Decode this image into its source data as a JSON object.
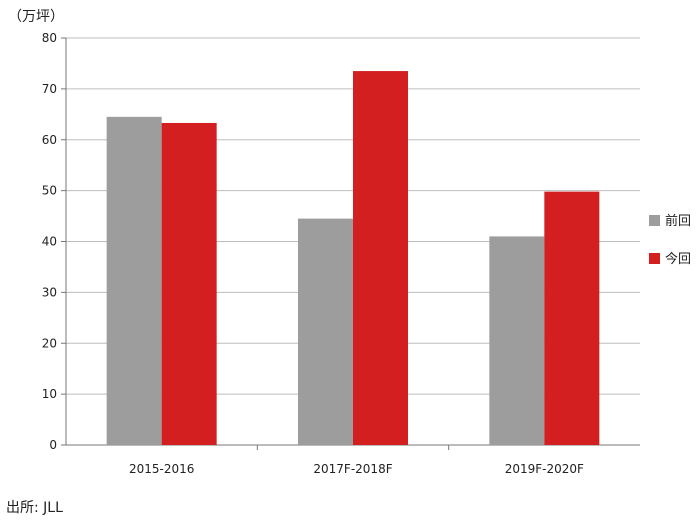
{
  "chart_data": {
    "type": "bar",
    "unit_label": "（万坪）",
    "categories": [
      "2015-2016",
      "2017F-2018F",
      "2019F-2020F"
    ],
    "series": [
      {
        "name": "前回",
        "color": "#9d9d9d",
        "values": [
          64.5,
          44.5,
          41
        ]
      },
      {
        "name": "今回",
        "color": "#d31f1f",
        "values": [
          63.3,
          73.5,
          49.8
        ]
      }
    ],
    "ylim": [
      0,
      80
    ],
    "y_ticks": [
      0,
      10,
      20,
      30,
      40,
      50,
      60,
      70,
      80
    ],
    "grid": true,
    "legend_position": "right"
  },
  "source": "出所: JLL"
}
